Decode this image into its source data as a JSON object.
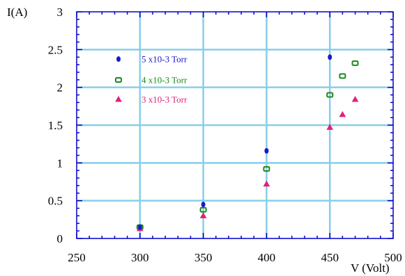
{
  "chart_data": {
    "type": "scatter",
    "title": "",
    "xlabel": "V (Volt)",
    "ylabel": "I(A)",
    "xlim": [
      250,
      500
    ],
    "ylim": [
      0,
      3
    ],
    "xticks": [
      250,
      300,
      350,
      400,
      450,
      500
    ],
    "yticks": [
      0,
      0.5,
      1,
      1.5,
      2,
      2.5,
      3
    ],
    "xtick_labels": [
      "250",
      "300",
      "350",
      "400",
      "450",
      "500"
    ],
    "ytick_labels": [
      "0",
      "0.5",
      "1",
      "1.5",
      "2",
      "2.5",
      "3"
    ],
    "grid": true,
    "grid_color": "#87ceeb",
    "axis_color": "#0000cc",
    "legend_position": "top-left",
    "series": [
      {
        "name": "5  x10-3  Torr",
        "marker": "filled-ellipse",
        "color": "#1a1acc",
        "points": [
          [
            300,
            0.15
          ],
          [
            350,
            0.45
          ],
          [
            400,
            1.16
          ],
          [
            450,
            2.4
          ]
        ]
      },
      {
        "name": "4  x10-3  Torr",
        "marker": "hollow-square",
        "color": "#1a8a1a",
        "points": [
          [
            300,
            0.15
          ],
          [
            350,
            0.38
          ],
          [
            400,
            0.92
          ],
          [
            450,
            1.9
          ],
          [
            460,
            2.15
          ],
          [
            470,
            2.32
          ]
        ]
      },
      {
        "name": "3  x10-3  Torr",
        "marker": "filled-triangle",
        "color": "#e0207a",
        "points": [
          [
            300,
            0.13
          ],
          [
            350,
            0.3
          ],
          [
            400,
            0.72
          ],
          [
            450,
            1.47
          ],
          [
            460,
            1.64
          ],
          [
            470,
            1.84
          ]
        ]
      }
    ]
  }
}
